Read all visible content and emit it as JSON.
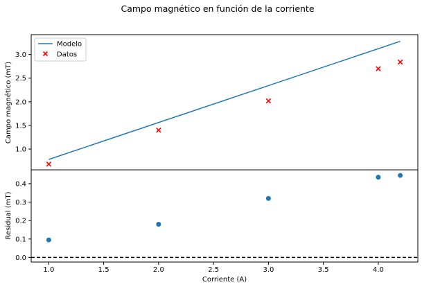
{
  "figure": {
    "title": "Campo magnético en función de la corriente"
  },
  "chart_data": [
    {
      "type": "line",
      "panel": "top",
      "ylabel": "Campo magnético (mT)",
      "xlim": [
        0.84,
        4.36
      ],
      "ylim": [
        0.56,
        3.42
      ],
      "yticks": [
        "1.0",
        "1.5",
        "2.0",
        "2.5",
        "3.0"
      ],
      "legend": {
        "placement": "top-left",
        "entries": [
          "Modelo",
          "Datos"
        ]
      },
      "series": [
        {
          "name": "Modelo",
          "kind": "line",
          "color": "#1f77b4",
          "x": [
            1.0,
            4.2
          ],
          "y": [
            0.78,
            3.28
          ]
        },
        {
          "name": "Datos",
          "kind": "scatter",
          "marker": "x",
          "color": "#ff0000",
          "x": [
            1.0,
            2.0,
            3.0,
            4.0,
            4.2
          ],
          "y": [
            0.68,
            1.4,
            2.02,
            2.7,
            2.84
          ]
        }
      ]
    },
    {
      "type": "scatter",
      "panel": "bottom",
      "xlabel": "Corriente (A)",
      "ylabel": "Residual (mT)",
      "xlim": [
        0.84,
        4.36
      ],
      "ylim": [
        -0.025,
        0.475
      ],
      "xticks": [
        "1.0",
        "1.5",
        "2.0",
        "2.5",
        "3.0",
        "3.5",
        "4.0"
      ],
      "yticks": [
        "0.0",
        "0.1",
        "0.2",
        "0.3",
        "0.4"
      ],
      "reference_line": {
        "y": 0.0,
        "style": "dashed",
        "color": "#000000"
      },
      "series": [
        {
          "kind": "scatter",
          "marker": "circle",
          "color": "#1f77b4",
          "x": [
            1.0,
            2.0,
            3.0,
            4.0,
            4.2
          ],
          "y": [
            0.095,
            0.18,
            0.32,
            0.435,
            0.445
          ]
        }
      ]
    }
  ]
}
